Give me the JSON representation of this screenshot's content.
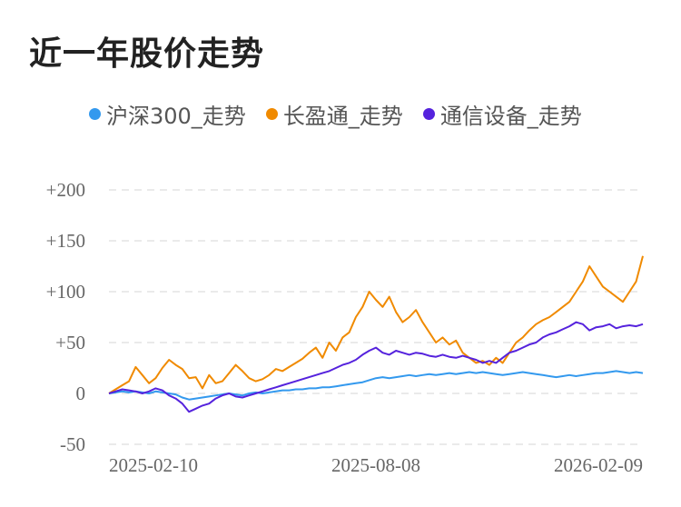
{
  "page": {
    "title": "近一年股价走势"
  },
  "colors": {
    "grid": "#e3e3e3",
    "axis_text": "#666666"
  },
  "chart_data": {
    "type": "line",
    "title": "近一年股价走势",
    "xlabel": "",
    "ylabel": "",
    "legend_position": "top",
    "grid": true,
    "ylim": [
      -50,
      200
    ],
    "y_ticks": [
      {
        "value": 200,
        "label": "+200"
      },
      {
        "value": 150,
        "label": "+150"
      },
      {
        "value": 100,
        "label": "+100"
      },
      {
        "value": 50,
        "label": "+50"
      },
      {
        "value": 0,
        "label": "0"
      },
      {
        "value": -50,
        "label": "-50"
      }
    ],
    "x_ticks": [
      {
        "index": 0,
        "label": "2025-02-10"
      },
      {
        "index": 40,
        "label": "2025-08-08"
      },
      {
        "index": 80,
        "label": "2026-02-09"
      }
    ],
    "series": [
      {
        "name": "沪深300_走势",
        "color": "#3399ee",
        "values": [
          0,
          1,
          2,
          1,
          2,
          1,
          0,
          2,
          1,
          0,
          -1,
          -4,
          -6,
          -5,
          -4,
          -3,
          -2,
          -1,
          0,
          -1,
          -2,
          0,
          1,
          0,
          1,
          2,
          3,
          3,
          4,
          4,
          5,
          5,
          6,
          6,
          7,
          8,
          9,
          10,
          11,
          13,
          15,
          16,
          15,
          16,
          17,
          18,
          17,
          18,
          19,
          18,
          19,
          20,
          19,
          20,
          21,
          20,
          21,
          20,
          19,
          18,
          19,
          20,
          21,
          20,
          19,
          18,
          17,
          16,
          17,
          18,
          17,
          18,
          19,
          20,
          20,
          21,
          22,
          21,
          20,
          21,
          20
        ]
      },
      {
        "name": "长盈通_走势",
        "color": "#f08a00",
        "values": [
          0,
          4,
          8,
          12,
          26,
          18,
          10,
          15,
          25,
          33,
          28,
          24,
          15,
          16,
          5,
          18,
          10,
          12,
          20,
          28,
          22,
          15,
          12,
          14,
          18,
          24,
          22,
          26,
          30,
          34,
          40,
          45,
          35,
          50,
          42,
          55,
          60,
          75,
          85,
          100,
          92,
          85,
          95,
          80,
          70,
          75,
          82,
          70,
          60,
          50,
          55,
          48,
          52,
          40,
          35,
          30,
          32,
          28,
          35,
          30,
          40,
          50,
          55,
          62,
          68,
          72,
          75,
          80,
          85,
          90,
          100,
          110,
          125,
          115,
          105,
          100,
          95,
          90,
          100,
          110,
          135
        ]
      },
      {
        "name": "通信设备_走势",
        "color": "#5522dd",
        "values": [
          0,
          2,
          4,
          3,
          2,
          0,
          2,
          5,
          3,
          -2,
          -5,
          -10,
          -18,
          -15,
          -12,
          -10,
          -5,
          -2,
          0,
          -3,
          -4,
          -2,
          0,
          2,
          4,
          6,
          8,
          10,
          12,
          14,
          16,
          18,
          20,
          22,
          25,
          28,
          30,
          33,
          38,
          42,
          45,
          40,
          38,
          42,
          40,
          38,
          40,
          39,
          37,
          36,
          38,
          36,
          35,
          37,
          35,
          33,
          30,
          32,
          30,
          35,
          40,
          42,
          45,
          48,
          50,
          55,
          58,
          60,
          63,
          66,
          70,
          68,
          62,
          65,
          66,
          68,
          64,
          66,
          67,
          66,
          68
        ]
      }
    ]
  }
}
